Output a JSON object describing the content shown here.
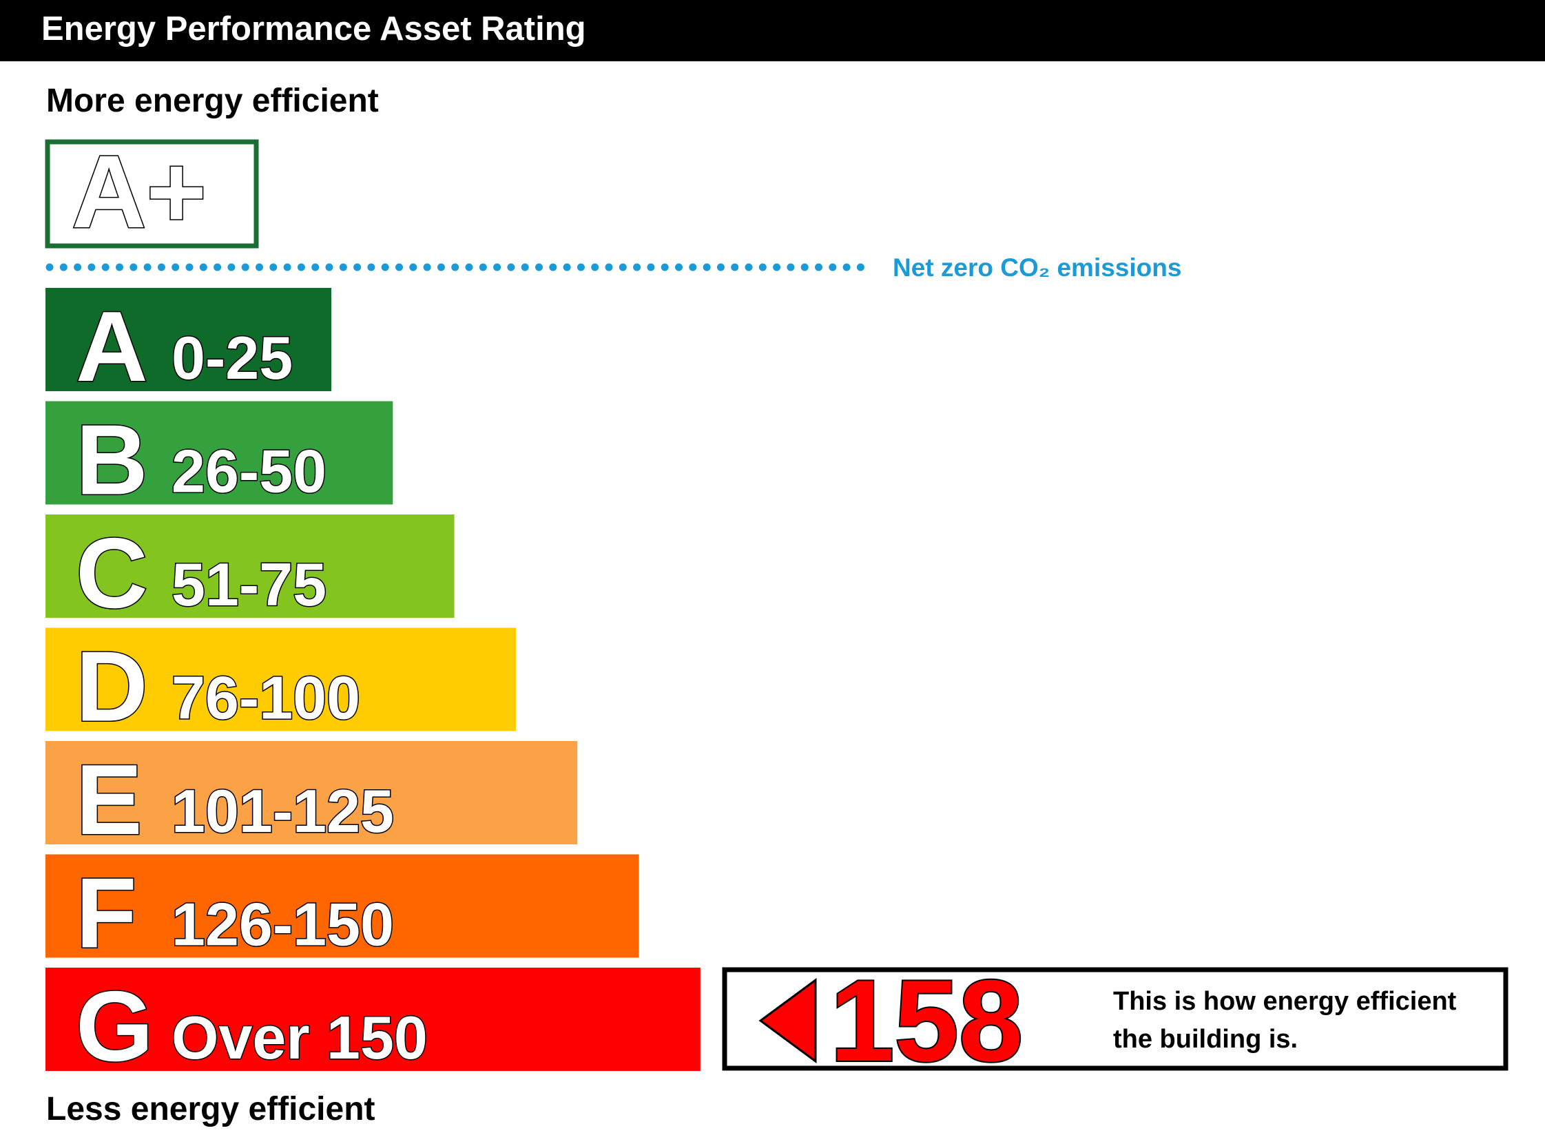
{
  "header": {
    "title": "Energy Performance Asset Rating"
  },
  "top_label": "More energy efficient",
  "bottom_label": "Less energy efficient",
  "best_band": {
    "letter": "A+",
    "color": "#1a6e33"
  },
  "net_zero": {
    "label": "Net zero CO₂ emissions",
    "color": "#1a9ad6"
  },
  "bands": [
    {
      "letter": "A",
      "range": "0-25",
      "color": "#0f6b2a"
    },
    {
      "letter": "B",
      "range": "26-50",
      "color": "#34a03e"
    },
    {
      "letter": "C",
      "range": "51-75",
      "color": "#84c41f"
    },
    {
      "letter": "D",
      "range": "76-100",
      "color": "#ffcc00"
    },
    {
      "letter": "E",
      "range": "101-125",
      "color": "#fba146"
    },
    {
      "letter": "F",
      "range": "126-150",
      "color": "#ff6600"
    },
    {
      "letter": "G",
      "range": "Over 150",
      "color": "#ff0000"
    }
  ],
  "rating": {
    "value": 158,
    "color": "#ff0000",
    "text_lines": [
      "This is how energy efficient",
      "the building is."
    ]
  }
}
